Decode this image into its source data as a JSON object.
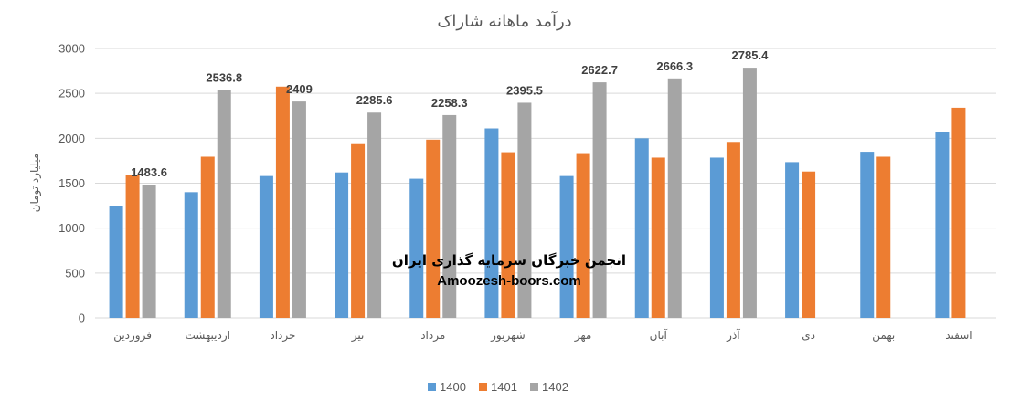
{
  "chart_data": {
    "type": "bar",
    "title": "درآمد ماهانه شاراک",
    "xlabel": "",
    "ylabel": "میلیارد تومان",
    "ylim": [
      0,
      3000
    ],
    "yticks": [
      0,
      500,
      1000,
      1500,
      2000,
      2500,
      3000
    ],
    "grid": true,
    "legend_position": "bottom",
    "categories": [
      "فروردین",
      "اردیبهشت",
      "خرداد",
      "تیر",
      "مرداد",
      "شهریور",
      "مهر",
      "آبان",
      "آذر",
      "دی",
      "بهمن",
      "اسفند"
    ],
    "series": [
      {
        "name": "1400",
        "color": "#5B9BD5",
        "values": [
          1245,
          1400,
          1580,
          1620,
          1550,
          2110,
          1580,
          2000,
          1785,
          1735,
          1850,
          2070
        ]
      },
      {
        "name": "1401",
        "color": "#ED7D31",
        "values": [
          1590,
          1795,
          2575,
          1935,
          1985,
          1845,
          1835,
          1785,
          1960,
          1630,
          1795,
          2340
        ]
      },
      {
        "name": "1402",
        "color": "#A5A5A5",
        "values": [
          1483.6,
          2536.8,
          2409,
          2285.6,
          2258.3,
          2395.5,
          2622.7,
          2666.3,
          2785.4,
          null,
          null,
          null
        ],
        "data_labels": [
          "1483.6",
          "2536.8",
          "2409",
          "2285.6",
          "2258.3",
          "2395.5",
          "2622.7",
          "2666.3",
          "2785.4"
        ]
      }
    ]
  },
  "watermark": {
    "line1": "انجمن خبرگان سرمایه گذاری ایران",
    "line2": "Amoozesh-boors.com"
  }
}
